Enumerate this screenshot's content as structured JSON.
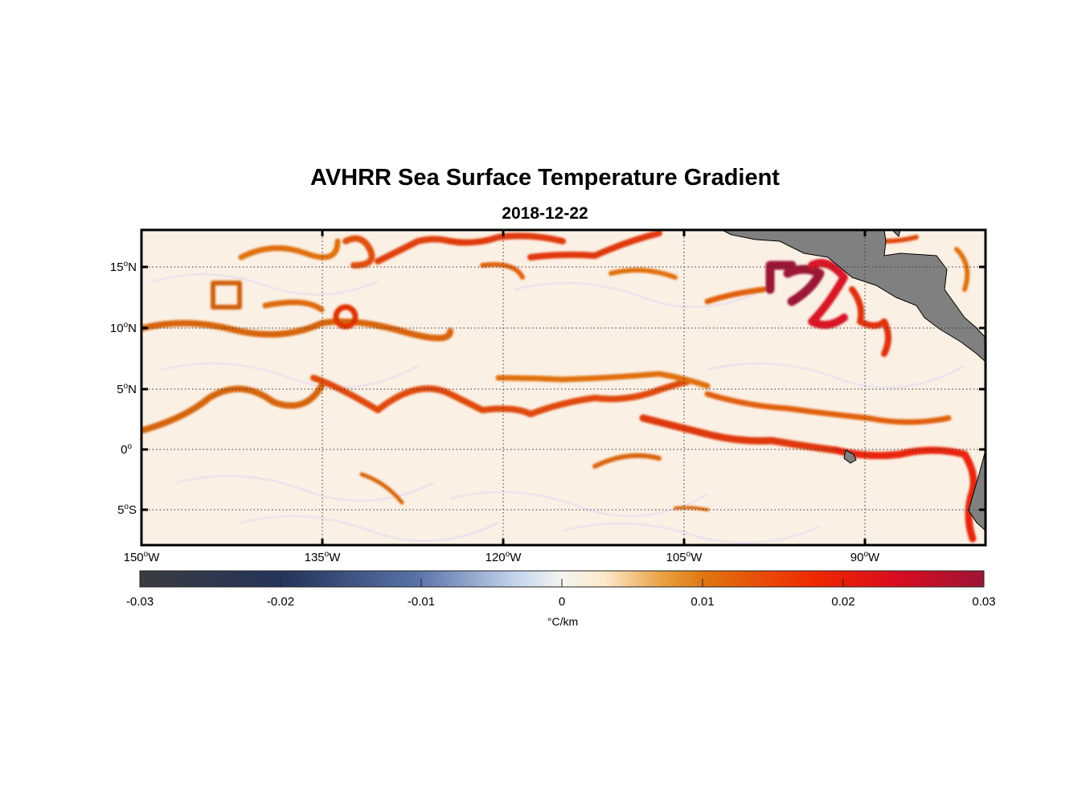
{
  "title": "AVHRR Sea Surface Temperature Gradient",
  "subtitle": "2018-12-22",
  "lat_labels": [
    {
      "deg": "15",
      "hemi": "N"
    },
    {
      "deg": "10",
      "hemi": "N"
    },
    {
      "deg": "5",
      "hemi": "N"
    },
    {
      "deg": "0",
      "hemi": ""
    },
    {
      "deg": "5",
      "hemi": "S"
    }
  ],
  "lon_labels": [
    {
      "deg": "150",
      "hemi": "W"
    },
    {
      "deg": "135",
      "hemi": "W"
    },
    {
      "deg": "120",
      "hemi": "W"
    },
    {
      "deg": "105",
      "hemi": "W"
    },
    {
      "deg": "90",
      "hemi": "W"
    }
  ],
  "colorbar": {
    "ticks": [
      "-0.03",
      "-0.02",
      "-0.01",
      "0",
      "0.01",
      "0.02",
      "0.03"
    ],
    "unit": "°C/km",
    "range": [
      -0.03,
      0.03
    ]
  },
  "colors": {
    "land": "#808080",
    "ocean_background": "#fbeee0",
    "front_low": "#e07a10",
    "front_mid": "#f02000",
    "front_high": "#9a1030"
  },
  "map_extent": {
    "lon": [
      -150,
      -80
    ],
    "lat": [
      -8,
      18
    ]
  }
}
